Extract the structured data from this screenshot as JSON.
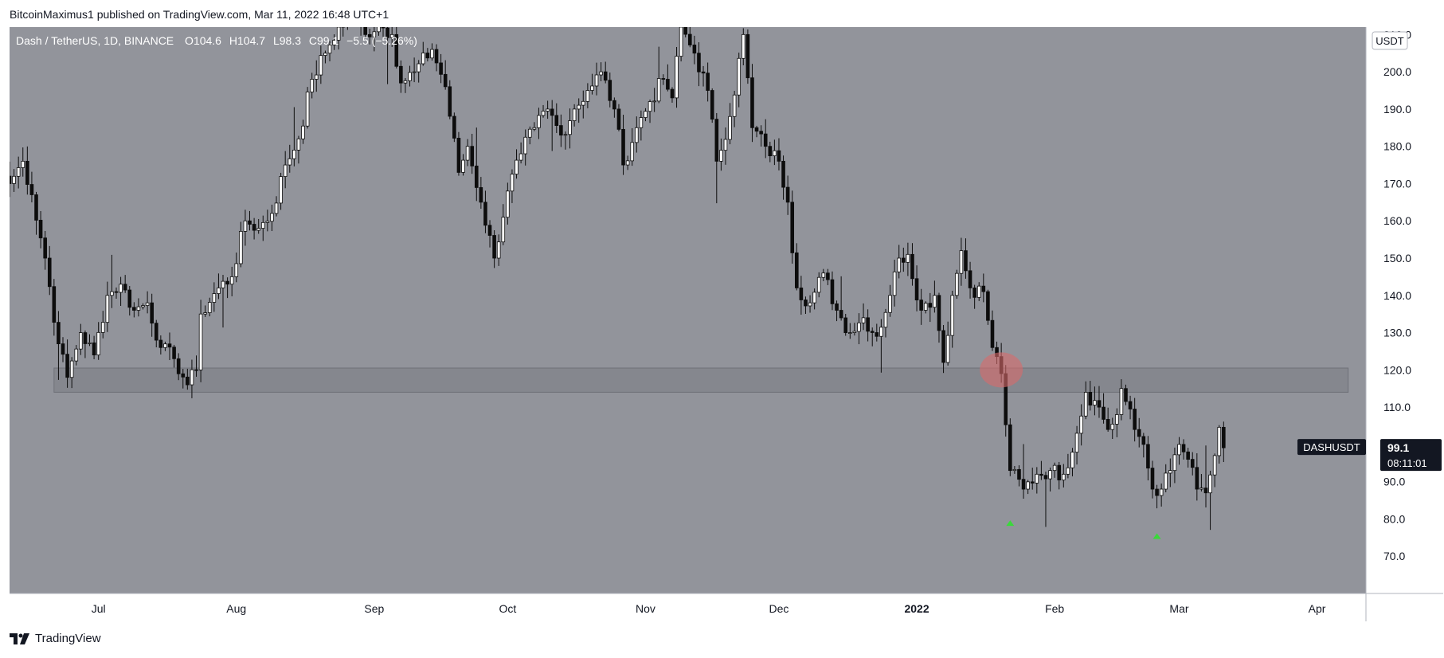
{
  "header": {
    "published": "BitcoinMaximus1 published on TradingView.com, Mar 11, 2022 16:48 UTC+1"
  },
  "legend": {
    "symbol": "Dash / TetherUS, 1D, BINANCE",
    "o_label": "O",
    "o_value": "104.6",
    "h_label": "H",
    "h_value": "104.7",
    "l_label": "L",
    "l_value": "98.3",
    "c_label": "C",
    "c_value": "99.1",
    "change": "−5.5 (−5.26%)"
  },
  "currency_badge": "USDT",
  "price_tag": {
    "symbol": "DASHUSDT",
    "price": "99.1",
    "countdown": "08:11:01"
  },
  "footer": {
    "brand": "TradingView"
  },
  "colors": {
    "background": "#92949b",
    "support_zone": "#85878e",
    "up_candle": "#ffffff",
    "down_candle": "#0d0d0d",
    "highlight": "#d96a6a",
    "arrow": "#3ad93a",
    "axis_text": "#131722"
  },
  "chart_data": {
    "type": "candlestick",
    "symbol": "DASHUSDT",
    "ylim": [
      60,
      212
    ],
    "y_ticks": [
      70.0,
      80.0,
      90.0,
      100.0,
      110.0,
      120.0,
      130.0,
      140.0,
      150.0,
      160.0,
      170.0,
      180.0,
      190.0,
      200.0,
      210.0
    ],
    "x_ticks": [
      {
        "label": "Jul",
        "date": "2021-07-01"
      },
      {
        "label": "Aug",
        "date": "2021-08-01"
      },
      {
        "label": "Sep",
        "date": "2021-09-01"
      },
      {
        "label": "Oct",
        "date": "2021-10-01"
      },
      {
        "label": "Nov",
        "date": "2021-11-01"
      },
      {
        "label": "Dec",
        "date": "2021-12-01"
      },
      {
        "label": "2022",
        "date": "2022-01-01"
      },
      {
        "label": "Feb",
        "date": "2022-02-01"
      },
      {
        "label": "Mar",
        "date": "2022-03-01"
      },
      {
        "label": "Apr",
        "date": "2022-04-01"
      }
    ],
    "x_range": [
      "2021-06-11",
      "2022-04-12"
    ],
    "support_zone": {
      "from_date": "2021-06-21",
      "to_date": "2022-04-08",
      "low": 114,
      "high": 120.5
    },
    "highlight": {
      "date": "2022-01-20",
      "price": 120
    },
    "arrows": [
      {
        "date": "2022-01-22",
        "price": 79
      },
      {
        "date": "2022-02-24",
        "price": 75.5
      }
    ],
    "last_price": 99.1,
    "anchors": [
      {
        "date": "2021-06-11",
        "price": 170
      },
      {
        "date": "2021-06-14",
        "price": 176
      },
      {
        "date": "2021-06-16",
        "price": 167
      },
      {
        "date": "2021-06-19",
        "price": 150
      },
      {
        "date": "2021-06-22",
        "price": 127
      },
      {
        "date": "2021-06-24",
        "price": 118
      },
      {
        "date": "2021-06-27",
        "price": 130
      },
      {
        "date": "2021-06-30",
        "price": 124
      },
      {
        "date": "2021-07-03",
        "price": 140
      },
      {
        "date": "2021-07-06",
        "price": 143
      },
      {
        "date": "2021-07-09",
        "price": 136
      },
      {
        "date": "2021-07-12",
        "price": 138
      },
      {
        "date": "2021-07-15",
        "price": 126
      },
      {
        "date": "2021-07-18",
        "price": 123
      },
      {
        "date": "2021-07-21",
        "price": 116
      },
      {
        "date": "2021-07-23",
        "price": 120
      },
      {
        "date": "2021-07-24",
        "price": 135
      },
      {
        "date": "2021-07-28",
        "price": 142
      },
      {
        "date": "2021-07-31",
        "price": 145
      },
      {
        "date": "2021-08-03",
        "price": 160
      },
      {
        "date": "2021-08-06",
        "price": 158
      },
      {
        "date": "2021-08-09",
        "price": 162
      },
      {
        "date": "2021-08-12",
        "price": 175
      },
      {
        "date": "2021-08-15",
        "price": 182
      },
      {
        "date": "2021-08-18",
        "price": 198
      },
      {
        "date": "2021-08-21",
        "price": 205
      },
      {
        "date": "2021-08-24",
        "price": 212
      },
      {
        "date": "2021-08-27",
        "price": 215
      },
      {
        "date": "2021-08-30",
        "price": 210
      },
      {
        "date": "2021-09-02",
        "price": 213
      },
      {
        "date": "2021-09-05",
        "price": 210
      },
      {
        "date": "2021-09-07",
        "price": 197
      },
      {
        "date": "2021-09-10",
        "price": 200
      },
      {
        "date": "2021-09-14",
        "price": 206
      },
      {
        "date": "2021-09-17",
        "price": 196
      },
      {
        "date": "2021-09-20",
        "price": 173
      },
      {
        "date": "2021-09-22",
        "price": 180
      },
      {
        "date": "2021-09-25",
        "price": 165
      },
      {
        "date": "2021-09-28",
        "price": 150
      },
      {
        "date": "2021-10-01",
        "price": 168
      },
      {
        "date": "2021-10-04",
        "price": 178
      },
      {
        "date": "2021-10-07",
        "price": 185
      },
      {
        "date": "2021-10-10",
        "price": 190
      },
      {
        "date": "2021-10-13",
        "price": 183
      },
      {
        "date": "2021-10-16",
        "price": 190
      },
      {
        "date": "2021-10-19",
        "price": 195
      },
      {
        "date": "2021-10-22",
        "price": 200
      },
      {
        "date": "2021-10-25",
        "price": 190
      },
      {
        "date": "2021-10-27",
        "price": 175
      },
      {
        "date": "2021-10-30",
        "price": 185
      },
      {
        "date": "2021-11-02",
        "price": 192
      },
      {
        "date": "2021-11-05",
        "price": 198
      },
      {
        "date": "2021-11-07",
        "price": 193
      },
      {
        "date": "2021-11-09",
        "price": 212
      },
      {
        "date": "2021-11-12",
        "price": 205
      },
      {
        "date": "2021-11-15",
        "price": 195
      },
      {
        "date": "2021-11-17",
        "price": 176
      },
      {
        "date": "2021-11-20",
        "price": 188
      },
      {
        "date": "2021-11-23",
        "price": 210
      },
      {
        "date": "2021-11-25",
        "price": 185
      },
      {
        "date": "2021-11-28",
        "price": 180
      },
      {
        "date": "2021-12-01",
        "price": 176
      },
      {
        "date": "2021-12-03",
        "price": 165
      },
      {
        "date": "2021-12-05",
        "price": 142
      },
      {
        "date": "2021-12-08",
        "price": 138
      },
      {
        "date": "2021-12-11",
        "price": 146
      },
      {
        "date": "2021-12-14",
        "price": 136
      },
      {
        "date": "2021-12-17",
        "price": 130
      },
      {
        "date": "2021-12-20",
        "price": 134
      },
      {
        "date": "2021-12-23",
        "price": 129
      },
      {
        "date": "2021-12-26",
        "price": 140
      },
      {
        "date": "2021-12-28",
        "price": 150
      },
      {
        "date": "2021-12-30",
        "price": 151
      },
      {
        "date": "2022-01-02",
        "price": 136
      },
      {
        "date": "2022-01-05",
        "price": 140
      },
      {
        "date": "2022-01-07",
        "price": 122
      },
      {
        "date": "2022-01-09",
        "price": 140
      },
      {
        "date": "2022-01-11",
        "price": 152
      },
      {
        "date": "2022-01-13",
        "price": 142
      },
      {
        "date": "2022-01-16",
        "price": 141
      },
      {
        "date": "2022-01-18",
        "price": 126
      },
      {
        "date": "2022-01-20",
        "price": 119
      },
      {
        "date": "2022-01-22",
        "price": 93
      },
      {
        "date": "2022-01-25",
        "price": 88
      },
      {
        "date": "2022-01-28",
        "price": 92
      },
      {
        "date": "2022-01-31",
        "price": 93
      },
      {
        "date": "2022-02-03",
        "price": 92
      },
      {
        "date": "2022-02-06",
        "price": 103
      },
      {
        "date": "2022-02-08",
        "price": 114
      },
      {
        "date": "2022-02-11",
        "price": 110
      },
      {
        "date": "2022-02-13",
        "price": 104
      },
      {
        "date": "2022-02-15",
        "price": 108
      },
      {
        "date": "2022-02-16",
        "price": 115
      },
      {
        "date": "2022-02-19",
        "price": 104
      },
      {
        "date": "2022-02-21",
        "price": 100
      },
      {
        "date": "2022-02-23",
        "price": 88
      },
      {
        "date": "2022-02-25",
        "price": 88
      },
      {
        "date": "2022-02-27",
        "price": 93
      },
      {
        "date": "2022-03-01",
        "price": 100
      },
      {
        "date": "2022-03-03",
        "price": 96
      },
      {
        "date": "2022-03-05",
        "price": 88
      },
      {
        "date": "2022-03-07",
        "price": 87
      },
      {
        "date": "2022-03-09",
        "price": 97
      },
      {
        "date": "2022-03-10",
        "price": 104.6
      },
      {
        "date": "2022-03-11",
        "price": 99.1
      }
    ]
  }
}
